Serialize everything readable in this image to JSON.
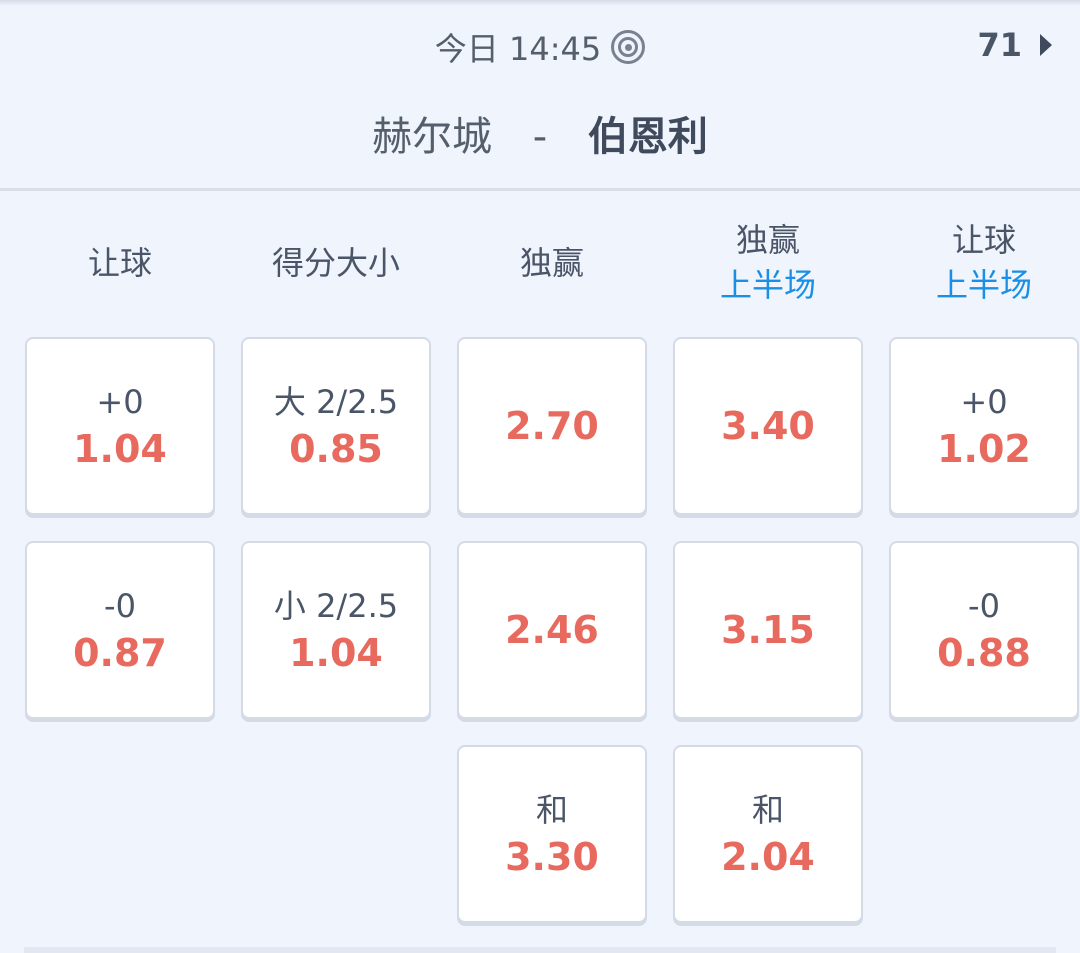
{
  "header": {
    "time": "今日 14:45",
    "live_icon": "target-icon",
    "count": "71",
    "home": "赫尔城",
    "separator": "-",
    "away": "伯恩利"
  },
  "columns": [
    {
      "title": "让球",
      "sub": ""
    },
    {
      "title": "得分大小",
      "sub": ""
    },
    {
      "title": "独赢",
      "sub": ""
    },
    {
      "title": "独赢",
      "sub": "上半场"
    },
    {
      "title": "让球",
      "sub": "上半场"
    }
  ],
  "cells": [
    [
      {
        "label": "+0",
        "odd": "1.04"
      },
      {
        "label": "-0",
        "odd": "0.87"
      }
    ],
    [
      {
        "label": "大 2/2.5",
        "odd": "0.85"
      },
      {
        "label": "小 2/2.5",
        "odd": "1.04"
      }
    ],
    [
      {
        "label": "",
        "odd": "2.70"
      },
      {
        "label": "",
        "odd": "2.46"
      },
      {
        "label": "和",
        "odd": "3.30"
      }
    ],
    [
      {
        "label": "",
        "odd": "3.40"
      },
      {
        "label": "",
        "odd": "3.15"
      },
      {
        "label": "和",
        "odd": "2.04"
      }
    ],
    [
      {
        "label": "+0",
        "odd": "1.02"
      },
      {
        "label": "-0",
        "odd": "0.88"
      }
    ]
  ],
  "colors": {
    "odds": "#e8695e",
    "sub": "#1a8fe3",
    "background": "#eff4fd"
  }
}
